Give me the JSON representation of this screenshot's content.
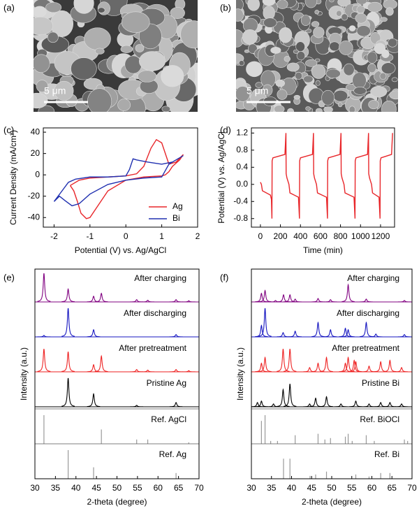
{
  "images": [
    {
      "label": "(a)",
      "scale_bar": "5 μm"
    },
    {
      "label": "(b)",
      "scale_bar": "5 μm"
    }
  ],
  "chart_data": [
    {
      "type": "line",
      "label": "(c)",
      "xlabel": "Potential (V) vs. Ag/AgCl",
      "ylabel": "Current Density (mA/cm²)",
      "xlim": [
        -2.3,
        2
      ],
      "xticks": [
        -2,
        -1,
        0,
        1,
        2
      ],
      "ylim": [
        -49,
        44
      ],
      "yticks": [
        -40,
        -20,
        0,
        20,
        40
      ],
      "legend": "lower right",
      "series": [
        {
          "name": "Ag",
          "color": "#e8262a",
          "x": [
            -1.55,
            -1.3,
            -1.0,
            -0.5,
            0,
            0.3,
            0.5,
            0.7,
            0.85,
            1.0,
            1.1,
            1.2,
            1.4,
            1.6,
            1.5,
            1.3,
            1.2,
            1.1,
            1.0,
            0.5,
            0,
            -0.5,
            -0.8,
            -1.0,
            -1.1,
            -1.25,
            -1.35,
            -1.45,
            -1.55
          ],
          "values": [
            -10,
            -5,
            -3,
            -2,
            -1,
            1,
            8,
            25,
            33,
            30,
            20,
            10,
            12,
            19,
            14,
            8,
            3,
            0,
            -1,
            -2,
            -5,
            -15,
            -30,
            -40,
            -41,
            -36,
            -25,
            -15,
            -10
          ]
        },
        {
          "name": "Bi",
          "color": "#2030b0",
          "x": [
            -2.0,
            -1.8,
            -1.6,
            -1.4,
            -1.0,
            -0.5,
            0,
            0.1,
            0.2,
            0.3,
            0.6,
            1.0,
            1.3,
            1.6,
            1.4,
            1.2,
            1.1,
            1.0,
            0.5,
            0,
            -0.5,
            -1.0,
            -1.3,
            -1.5,
            -1.7,
            -1.85,
            -2.0
          ],
          "values": [
            -25,
            -16,
            -7,
            -4,
            -2,
            -2,
            -1,
            5,
            15,
            14,
            12,
            10,
            12,
            18,
            14,
            10,
            4,
            -2,
            -3,
            -5,
            -9,
            -18,
            -27,
            -29,
            -24,
            -20,
            -25
          ]
        }
      ]
    },
    {
      "type": "line",
      "label": "(d)",
      "xlabel": "Time (min)",
      "ylabel": "Potential (V) vs. Ag/AgCl",
      "color": "#e8262a",
      "xlim": [
        -90,
        1340
      ],
      "xticks": [
        0,
        200,
        400,
        600,
        800,
        1000,
        1200
      ],
      "ylim": [
        -1.0,
        1.32
      ],
      "yticks": [
        -0.8,
        -0.4,
        {
          "value": 0,
          "label": "0.0"
        },
        0.4,
        0.8,
        1.2
      ],
      "x": [
        0,
        10,
        20,
        100,
        110,
        115,
        117,
        125,
        245,
        255,
        257,
        265,
        285,
        295,
        380,
        390,
        392,
        400,
        520,
        530,
        532,
        540,
        560,
        570,
        660,
        670,
        672,
        680,
        795,
        805,
        807,
        815,
        835,
        845,
        935,
        945,
        947,
        955,
        1070,
        1080,
        1082,
        1090,
        1110,
        1120,
        1185,
        1195,
        1197,
        1205,
        1310,
        1320
      ],
      "values": [
        0.05,
        0.0,
        -0.15,
        -0.25,
        -0.35,
        -0.8,
        0.55,
        0.62,
        0.7,
        1.2,
        0.25,
        0.15,
        0.0,
        -0.2,
        -0.3,
        -0.8,
        0.55,
        0.62,
        0.7,
        1.2,
        0.25,
        0.15,
        0.0,
        -0.2,
        -0.3,
        -0.8,
        0.55,
        0.62,
        0.7,
        1.2,
        0.25,
        0.15,
        0.0,
        -0.2,
        -0.3,
        -0.8,
        0.55,
        0.62,
        0.7,
        1.2,
        0.25,
        0.15,
        0.0,
        -0.2,
        -0.3,
        -0.8,
        0.55,
        0.62,
        0.7,
        1.2
      ]
    },
    {
      "type": "xrd",
      "label": "(e)",
      "xlabel": "2-theta (degree)",
      "ylabel": "Intensity (a.u.)",
      "xlim": [
        30,
        70
      ],
      "xticks": [
        30,
        35,
        40,
        45,
        50,
        55,
        60,
        65,
        70
      ],
      "series": [
        {
          "name": "After charging",
          "color": "#800080",
          "x": [
            32.2,
            38.1,
            44.3,
            46.2,
            54.8,
            57.5,
            64.4,
            67.5
          ],
          "values": [
            100,
            45,
            20,
            30,
            8,
            6,
            8,
            4
          ]
        },
        {
          "name": "After discharging",
          "color": "#1515c0",
          "x": [
            32.2,
            38.1,
            44.3,
            64.4
          ],
          "values": [
            5,
            100,
            25,
            8
          ]
        },
        {
          "name": "After pretreatment",
          "color": "#ee2222",
          "x": [
            32.2,
            38.1,
            44.3,
            46.2,
            54.8,
            57.5,
            64.4,
            67.5
          ],
          "values": [
            80,
            70,
            25,
            55,
            8,
            6,
            8,
            4
          ]
        },
        {
          "name": "Pristine Ag",
          "color": "#000000",
          "x": [
            38.1,
            44.3,
            54.8,
            64.4
          ],
          "values": [
            100,
            45,
            5,
            15
          ]
        }
      ],
      "references": [
        {
          "name": "Ref. AgCl",
          "color": "#999999",
          "x": [
            32.2,
            46.2,
            54.8,
            57.5,
            67.5
          ],
          "values": [
            100,
            50,
            15,
            15,
            5
          ]
        },
        {
          "name": "Ref. Ag",
          "color": "#999999",
          "x": [
            38.1,
            44.3,
            64.4
          ],
          "values": [
            100,
            40,
            20
          ]
        }
      ]
    },
    {
      "type": "xrd",
      "label": "(f)",
      "xlabel": "2-theta (degree)",
      "ylabel": "Intensity (a.u.)",
      "xlim": [
        30,
        70
      ],
      "xticks": [
        30,
        35,
        40,
        45,
        50,
        55,
        60,
        65,
        70
      ],
      "series": [
        {
          "name": "After charging",
          "color": "#800080",
          "x": [
            32.5,
            33.4,
            36,
            38,
            39.6,
            40.9,
            46.6,
            49.7,
            54.1,
            58.6,
            68.1
          ],
          "values": [
            30,
            40,
            5,
            25,
            25,
            10,
            12,
            8,
            60,
            10,
            5
          ]
        },
        {
          "name": "After discharging",
          "color": "#1515c0",
          "x": [
            32.5,
            33.4,
            37.9,
            40.9,
            46.6,
            49.7,
            53.4,
            54.1,
            58.6,
            61,
            68.1
          ],
          "values": [
            40,
            100,
            15,
            20,
            50,
            25,
            30,
            25,
            50,
            10,
            8
          ]
        },
        {
          "name": "After pretreatment",
          "color": "#ee2222",
          "x": [
            32.5,
            33.4,
            37.9,
            39.6,
            44.5,
            46.6,
            48.7,
            53.4,
            54.1,
            55.6,
            56,
            59.3,
            62.2,
            64.5,
            67.4
          ],
          "values": [
            30,
            50,
            80,
            80,
            15,
            30,
            50,
            30,
            50,
            40,
            35,
            20,
            35,
            40,
            15
          ]
        },
        {
          "name": "Pristine Bi",
          "color": "#000000",
          "x": [
            31.5,
            32.5,
            35.5,
            37.9,
            39.6,
            44.5,
            46,
            48.7,
            52.3,
            56,
            59.3,
            62.2,
            64.5,
            67.4
          ],
          "values": [
            15,
            20,
            10,
            60,
            80,
            10,
            30,
            35,
            10,
            20,
            10,
            15,
            15,
            10
          ]
        }
      ],
      "references": [
        {
          "name": "Ref. BiOCl",
          "color": "#999999",
          "x": [
            32.5,
            33.4,
            34.8,
            36.5,
            40.9,
            46.6,
            48.3,
            49.7,
            53.4,
            54.1,
            55.1,
            58.6,
            60.6,
            68.1,
            68.9
          ],
          "values": [
            80,
            100,
            10,
            10,
            30,
            35,
            15,
            20,
            25,
            35,
            10,
            30,
            10,
            15,
            10
          ]
        },
        {
          "name": "Ref. Bi",
          "color": "#999999",
          "x": [
            38,
            39.6,
            44.6,
            46,
            48.7,
            56,
            59.3,
            62.2,
            64.5
          ],
          "values": [
            70,
            70,
            10,
            15,
            25,
            15,
            8,
            20,
            20
          ]
        }
      ]
    }
  ]
}
